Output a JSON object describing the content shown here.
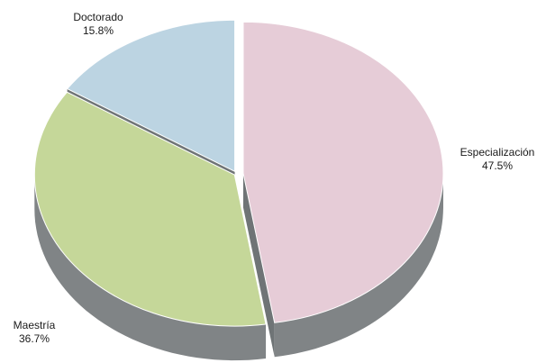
{
  "chart_data": {
    "type": "pie",
    "categories": [
      "Especialización",
      "Maestría",
      "Doctorado"
    ],
    "values": [
      47.5,
      36.7,
      15.8
    ],
    "value_labels": [
      "47.5%",
      "36.7%",
      "15.8%"
    ],
    "colors": {
      "Especialización": "#e6ccd7",
      "Maestría": "#c5d799",
      "Doctorado": "#bcd4e2"
    },
    "side_color": "#808486",
    "style": "3d-exploded",
    "legend": "none"
  }
}
